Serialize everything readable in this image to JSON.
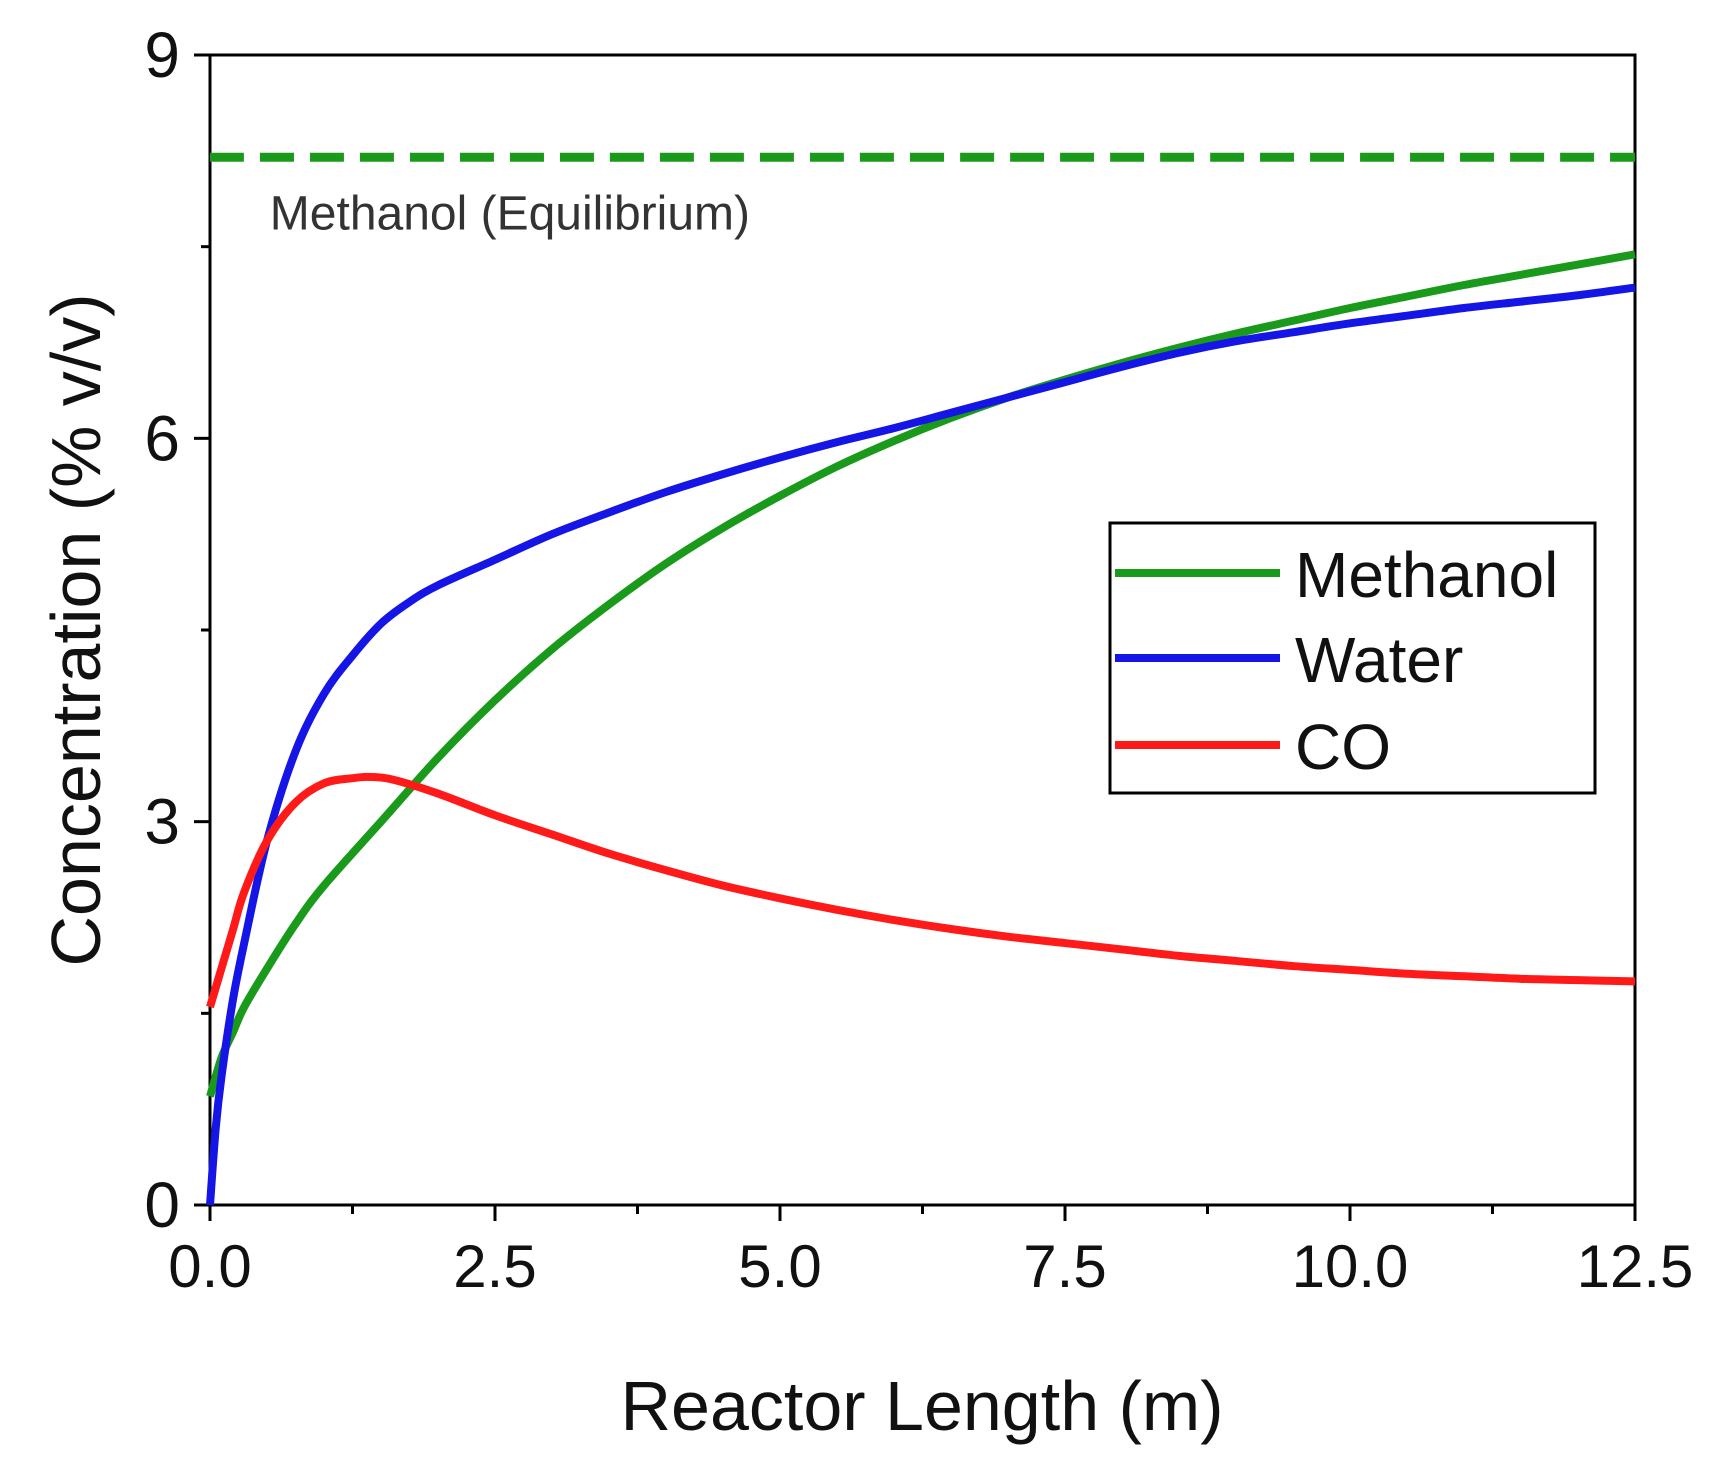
{
  "chart_data": {
    "type": "line",
    "title": "",
    "xlabel": "Reactor Length (m)",
    "ylabel": "Concentration (% v/v)",
    "xlim": [
      0,
      12.5
    ],
    "ylim": [
      0,
      9
    ],
    "xticks": [
      0,
      2.5,
      5.0,
      7.5,
      10.0,
      12.5
    ],
    "xtick_labels": [
      "0.0",
      "2.5",
      "5.0",
      "7.5",
      "10.0",
      "12.5"
    ],
    "yticks": [
      0,
      3,
      6,
      9
    ],
    "ytick_labels": [
      "0",
      "3",
      "6",
      "9"
    ],
    "grid": false,
    "legend_position": "center-right",
    "series": [
      {
        "name": "Methanol",
        "color": "#1a9a1a",
        "x": [
          0,
          0.1,
          0.2,
          0.3,
          0.5,
          0.75,
          1.0,
          1.5,
          2.0,
          2.5,
          3.0,
          3.5,
          4.0,
          4.5,
          5.0,
          5.5,
          6.0,
          6.5,
          7.0,
          7.5,
          8.0,
          8.5,
          9.0,
          9.5,
          10.0,
          10.5,
          11.0,
          11.5,
          12.0,
          12.5
        ],
        "values": [
          0.85,
          1.15,
          1.35,
          1.55,
          1.85,
          2.2,
          2.5,
          3.0,
          3.5,
          3.95,
          4.35,
          4.7,
          5.02,
          5.3,
          5.55,
          5.78,
          5.98,
          6.16,
          6.32,
          6.46,
          6.59,
          6.71,
          6.82,
          6.92,
          7.02,
          7.11,
          7.2,
          7.28,
          7.36,
          7.44
        ]
      },
      {
        "name": "Water",
        "color": "#1515e6",
        "x": [
          0,
          0.05,
          0.1,
          0.2,
          0.3,
          0.5,
          0.75,
          1.0,
          1.25,
          1.5,
          1.75,
          2.0,
          2.5,
          3.0,
          3.5,
          4.0,
          4.5,
          5.0,
          5.5,
          6.0,
          6.5,
          7.0,
          7.5,
          8.0,
          8.5,
          9.0,
          9.5,
          10.0,
          10.5,
          11.0,
          11.5,
          12.0,
          12.5
        ],
        "values": [
          0,
          0.6,
          1.0,
          1.6,
          2.05,
          2.85,
          3.55,
          4.0,
          4.3,
          4.55,
          4.72,
          4.85,
          5.05,
          5.25,
          5.42,
          5.58,
          5.72,
          5.85,
          5.97,
          6.08,
          6.2,
          6.32,
          6.44,
          6.56,
          6.67,
          6.76,
          6.83,
          6.9,
          6.96,
          7.02,
          7.07,
          7.12,
          7.18
        ]
      },
      {
        "name": "CO",
        "color": "#ff1a1a",
        "x": [
          0,
          0.1,
          0.2,
          0.3,
          0.5,
          0.75,
          1.0,
          1.25,
          1.4,
          1.6,
          2.0,
          2.5,
          3.0,
          3.5,
          4.0,
          4.5,
          5.0,
          5.5,
          6.0,
          6.5,
          7.0,
          7.5,
          8.0,
          8.5,
          9.0,
          9.5,
          10.0,
          10.5,
          11.0,
          11.5,
          12.0,
          12.5
        ],
        "values": [
          1.55,
          1.85,
          2.15,
          2.45,
          2.85,
          3.15,
          3.3,
          3.34,
          3.35,
          3.33,
          3.22,
          3.05,
          2.9,
          2.75,
          2.62,
          2.5,
          2.4,
          2.31,
          2.23,
          2.16,
          2.1,
          2.05,
          2.0,
          1.95,
          1.91,
          1.87,
          1.84,
          1.81,
          1.79,
          1.77,
          1.76,
          1.75
        ]
      },
      {
        "name": "Methanol (Equilibrium)",
        "color": "#1a9a1a",
        "style": "dashed",
        "x": [
          0,
          12.5
        ],
        "values": [
          8.2,
          8.2
        ]
      }
    ],
    "annotations": [
      {
        "text": "Methanol (Equilibrium)",
        "x": 0.7,
        "y": 7.75
      }
    ],
    "legend": [
      "Methanol",
      "Water",
      "CO"
    ]
  }
}
